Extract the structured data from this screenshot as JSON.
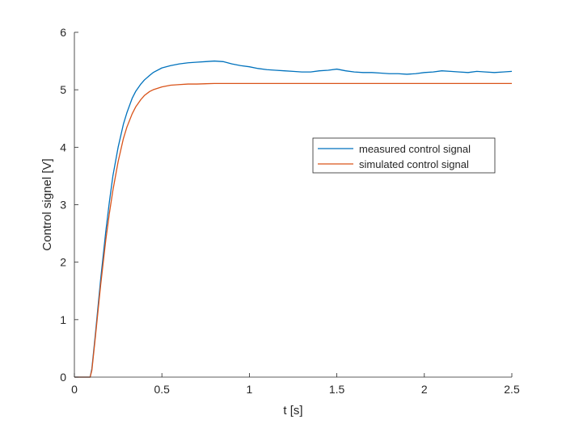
{
  "chart_data": {
    "type": "line",
    "xlabel": "t [s]",
    "ylabel": "Control signel [V]",
    "xlim": [
      0,
      2.5
    ],
    "ylim": [
      0,
      6
    ],
    "xticks": [
      "0",
      "0.5",
      "1",
      "1.5",
      "2",
      "2.5"
    ],
    "yticks": [
      "0",
      "1",
      "2",
      "3",
      "4",
      "5",
      "6"
    ],
    "grid": false,
    "legend_position": "center-right",
    "series": [
      {
        "name": "measured control signal",
        "color": "#0072bd",
        "x": [
          0,
          0.09,
          0.1,
          0.12,
          0.15,
          0.18,
          0.2,
          0.22,
          0.25,
          0.28,
          0.3,
          0.33,
          0.35,
          0.38,
          0.4,
          0.43,
          0.45,
          0.5,
          0.55,
          0.6,
          0.65,
          0.7,
          0.75,
          0.8,
          0.85,
          0.9,
          0.95,
          1.0,
          1.05,
          1.1,
          1.15,
          1.2,
          1.25,
          1.3,
          1.35,
          1.4,
          1.45,
          1.5,
          1.55,
          1.6,
          1.65,
          1.7,
          1.75,
          1.8,
          1.85,
          1.9,
          1.95,
          2.0,
          2.05,
          2.1,
          2.15,
          2.2,
          2.25,
          2.3,
          2.35,
          2.4,
          2.45,
          2.5
        ],
        "y": [
          0,
          0,
          0.15,
          0.75,
          1.7,
          2.55,
          3.05,
          3.5,
          4.0,
          4.4,
          4.6,
          4.85,
          4.97,
          5.1,
          5.17,
          5.25,
          5.3,
          5.38,
          5.42,
          5.45,
          5.47,
          5.48,
          5.49,
          5.5,
          5.49,
          5.45,
          5.42,
          5.4,
          5.37,
          5.35,
          5.34,
          5.33,
          5.32,
          5.31,
          5.31,
          5.33,
          5.34,
          5.36,
          5.33,
          5.31,
          5.3,
          5.3,
          5.29,
          5.28,
          5.28,
          5.27,
          5.28,
          5.3,
          5.31,
          5.33,
          5.32,
          5.31,
          5.3,
          5.32,
          5.31,
          5.3,
          5.31,
          5.32
        ]
      },
      {
        "name": "simulated control signal",
        "color": "#d95319",
        "x": [
          0,
          0.09,
          0.1,
          0.12,
          0.15,
          0.18,
          0.2,
          0.22,
          0.25,
          0.28,
          0.3,
          0.33,
          0.35,
          0.38,
          0.4,
          0.43,
          0.45,
          0.5,
          0.55,
          0.6,
          0.65,
          0.7,
          0.8,
          0.9,
          1.0,
          1.25,
          1.5,
          1.75,
          2.0,
          2.25,
          2.5
        ],
        "y": [
          0,
          0,
          0.12,
          0.7,
          1.6,
          2.4,
          2.85,
          3.25,
          3.75,
          4.15,
          4.35,
          4.58,
          4.7,
          4.83,
          4.9,
          4.97,
          5.0,
          5.05,
          5.08,
          5.09,
          5.1,
          5.1,
          5.11,
          5.11,
          5.11,
          5.11,
          5.11,
          5.11,
          5.11,
          5.11,
          5.11
        ]
      }
    ]
  }
}
